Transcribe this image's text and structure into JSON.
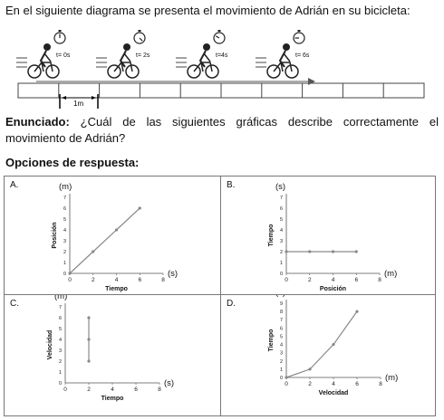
{
  "intro_text": "En el siguiente diagrama se presenta el movimiento de Adrián en su bicicleta:",
  "diagram": {
    "time_labels": [
      "t= 0s",
      "t= 2s",
      "t=4s",
      "t= 6s"
    ],
    "scale_label": "1m"
  },
  "statement": {
    "label": "Enunciado:",
    "text": " ¿Cuál de las siguientes gráficas describe correctamente el movimiento de Adrián?"
  },
  "options_heading": "Opciones de respuesta:",
  "chart_data": [
    {
      "option": "A.",
      "type": "line",
      "ylabel": "Posición",
      "yunit": "(m)",
      "xlabel": "Tiempo",
      "xunit": "(s)",
      "xlim": [
        0,
        8
      ],
      "ylim": [
        0,
        7
      ],
      "xticks": [
        0,
        2,
        4,
        6,
        8
      ],
      "yticks": [
        0,
        1,
        2,
        3,
        4,
        5,
        6,
        7
      ],
      "x": [
        0,
        2,
        4,
        6
      ],
      "y": [
        0,
        2,
        4,
        6
      ]
    },
    {
      "option": "B.",
      "type": "line",
      "ylabel": "Tiempo",
      "yunit": "(s)",
      "xlabel": "Posición",
      "xunit": "(m)",
      "xlim": [
        0,
        8
      ],
      "ylim": [
        0,
        7
      ],
      "xticks": [
        0,
        2,
        4,
        6,
        8
      ],
      "yticks": [
        0,
        1,
        2,
        3,
        4,
        5,
        6,
        7
      ],
      "x": [
        0,
        2,
        4,
        6
      ],
      "y": [
        2,
        2,
        2,
        2
      ]
    },
    {
      "option": "C.",
      "type": "line",
      "ylabel": "Velocidad",
      "yunit": "(m)",
      "xlabel": "Tiempo",
      "xunit": "(s)",
      "xlim": [
        0,
        8
      ],
      "ylim": [
        0,
        7
      ],
      "xticks": [
        0,
        2,
        4,
        6,
        8
      ],
      "yticks": [
        0,
        1,
        2,
        3,
        4,
        5,
        6,
        7
      ],
      "x": [
        2,
        2,
        2
      ],
      "y": [
        2,
        4,
        6
      ]
    },
    {
      "option": "D.",
      "type": "line",
      "ylabel": "Tiempo",
      "yunit": "(s)",
      "xlabel": "Velocidad",
      "xunit": "(m)",
      "xlim": [
        0,
        8
      ],
      "ylim": [
        0,
        9
      ],
      "xticks": [
        0,
        2,
        4,
        6,
        8
      ],
      "yticks": [
        0,
        1,
        2,
        3,
        4,
        5,
        6,
        7,
        8,
        9
      ],
      "x": [
        0,
        2,
        4,
        6
      ],
      "y": [
        0,
        1,
        4,
        8
      ]
    }
  ]
}
